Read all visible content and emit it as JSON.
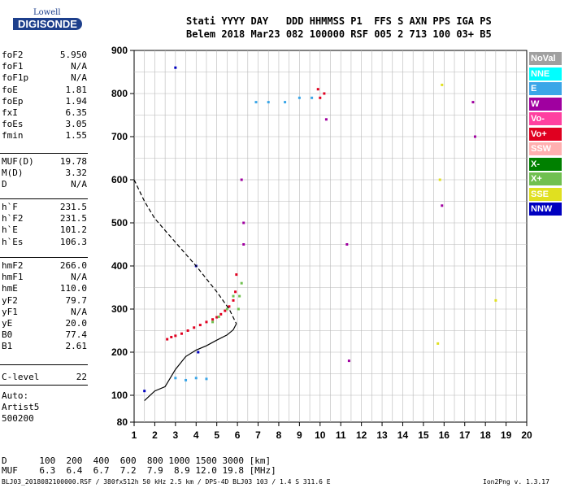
{
  "logo": {
    "line1": "Lowell",
    "line2": "DIGISONDE"
  },
  "header": {
    "line1": "Stati YYYY DAY   DDD HHMMSS P1  FFS S AXN PPS IGA PS",
    "line2": "Belem 2018 Mar23 082 100000 RSF 005 2 713 100 03+ B5"
  },
  "params_1": [
    {
      "label": "foF2",
      "value": "5.950"
    },
    {
      "label": "foF1",
      "value": "N/A"
    },
    {
      "label": "foF1p",
      "value": "N/A"
    },
    {
      "label": "foE",
      "value": "1.81"
    },
    {
      "label": "foEp",
      "value": "1.94"
    },
    {
      "label": "fxI",
      "value": "6.35"
    },
    {
      "label": "foEs",
      "value": "3.05"
    },
    {
      "label": "fmin",
      "value": "1.55"
    }
  ],
  "params_2": [
    {
      "label": "MUF(D)",
      "value": "19.78"
    },
    {
      "label": "M(D)",
      "value": "3.32"
    },
    {
      "label": "D",
      "value": "N/A"
    }
  ],
  "params_3": [
    {
      "label": "h`F",
      "value": "231.5"
    },
    {
      "label": "h`F2",
      "value": "231.5"
    },
    {
      "label": "h`E",
      "value": "101.2"
    },
    {
      "label": "h`Es",
      "value": "106.3"
    }
  ],
  "params_4": [
    {
      "label": "hmF2",
      "value": "266.0"
    },
    {
      "label": "hmF1",
      "value": "N/A"
    },
    {
      "label": "hmE",
      "value": "110.0"
    },
    {
      "label": "yF2",
      "value": "79.7"
    },
    {
      "label": "yF1",
      "value": "N/A"
    },
    {
      "label": "yE",
      "value": "20.0"
    },
    {
      "label": "B0",
      "value": "77.4"
    },
    {
      "label": "B1",
      "value": "2.61"
    }
  ],
  "params_5": [
    {
      "label": "C-level",
      "value": "22"
    }
  ],
  "auto_lines": [
    "Auto:",
    "Artist5",
    "500200"
  ],
  "mufd_table": {
    "d_label": "D",
    "d_values": "100  200  400  600  800 1000 1500 3000 [km]",
    "muf_label": "MUF",
    "muf_values": "6.3  6.4  6.7  7.2  7.9  8.9 12.0 19.8 [MHz]"
  },
  "footnote_left": "BLJ03_2018082100000.RSF / 380fx512h 50 kHz 2.5 km / DPS-4D BLJ03 103 / 1.4 S 311.6 E",
  "footnote_right": "Ion2Png v. 1.3.17",
  "legend": [
    {
      "label": "NoVal",
      "bg": "#a0a0a0",
      "fg": "#ffffff"
    },
    {
      "label": "NNE",
      "bg": "#00ffff",
      "fg": "#ffffff"
    },
    {
      "label": "E",
      "bg": "#3aa6e8",
      "fg": "#ffffff"
    },
    {
      "label": "W",
      "bg": "#a000a0",
      "fg": "#ffffff"
    },
    {
      "label": "Vo-",
      "bg": "#ff40a0",
      "fg": "#ffffff"
    },
    {
      "label": "Vo+",
      "bg": "#e00020",
      "fg": "#ffffff"
    },
    {
      "label": "SSW",
      "bg": "#ffb0b0",
      "fg": "#ffffff"
    },
    {
      "label": "X-",
      "bg": "#008000",
      "fg": "#ffffff"
    },
    {
      "label": "X+",
      "bg": "#70c050",
      "fg": "#ffffff"
    },
    {
      "label": "SSE",
      "bg": "#e0e020",
      "fg": "#ffffff"
    },
    {
      "label": "NNW",
      "bg": "#0000c0",
      "fg": "#ffffff"
    }
  ],
  "chart_data": {
    "type": "scatter",
    "xlabel": "",
    "ylabel": "",
    "xlim": [
      1,
      20
    ],
    "ylim": [
      80,
      900
    ],
    "x_ticks": [
      "1",
      "2",
      "3",
      "4",
      "5",
      "6",
      "7",
      "8",
      "9",
      "10",
      "11",
      "12",
      "13",
      "14",
      "15",
      "16",
      "17",
      "18",
      "19",
      "20"
    ],
    "y_ticks": [
      "80",
      "100",
      "200",
      "300",
      "400",
      "500",
      "600",
      "700",
      "800",
      "900"
    ],
    "grid": true,
    "series": [
      {
        "name": "Vo+",
        "color": "#e00020",
        "points": [
          [
            2.6,
            230
          ],
          [
            2.8,
            235
          ],
          [
            3.0,
            238
          ],
          [
            3.3,
            243
          ],
          [
            3.6,
            250
          ],
          [
            3.9,
            257
          ],
          [
            4.2,
            263
          ],
          [
            4.5,
            270
          ],
          [
            4.8,
            276
          ],
          [
            5.0,
            281
          ],
          [
            5.2,
            288
          ],
          [
            5.4,
            296
          ],
          [
            5.6,
            306
          ],
          [
            5.8,
            320
          ],
          [
            5.9,
            340
          ],
          [
            5.95,
            380
          ],
          [
            10.0,
            790
          ],
          [
            10.2,
            800
          ],
          [
            9.9,
            810
          ]
        ]
      },
      {
        "name": "X+",
        "color": "#70c050",
        "points": [
          [
            4.8,
            270
          ],
          [
            5.1,
            282
          ],
          [
            5.5,
            300
          ],
          [
            5.8,
            330
          ],
          [
            6.05,
            300
          ],
          [
            6.1,
            330
          ],
          [
            6.2,
            360
          ]
        ]
      },
      {
        "name": "E",
        "color": "#3aa6e8",
        "points": [
          [
            3.0,
            140
          ],
          [
            3.5,
            135
          ],
          [
            4.0,
            140
          ],
          [
            4.5,
            138
          ],
          [
            6.9,
            780
          ],
          [
            7.5,
            780
          ],
          [
            8.3,
            780
          ],
          [
            9.0,
            790
          ],
          [
            9.6,
            790
          ]
        ]
      },
      {
        "name": "W",
        "color": "#a000a0",
        "points": [
          [
            6.2,
            600
          ],
          [
            6.3,
            500
          ],
          [
            6.3,
            450
          ],
          [
            10.3,
            740
          ],
          [
            11.3,
            450
          ],
          [
            11.4,
            180
          ],
          [
            17.4,
            780
          ],
          [
            17.5,
            700
          ],
          [
            15.9,
            540
          ]
        ]
      },
      {
        "name": "NNW",
        "color": "#0000c0",
        "points": [
          [
            3.0,
            860
          ],
          [
            4.0,
            400
          ],
          [
            4.1,
            200
          ],
          [
            1.5,
            110
          ]
        ]
      },
      {
        "name": "SSE",
        "color": "#e0e020",
        "points": [
          [
            15.9,
            820
          ],
          [
            15.8,
            600
          ],
          [
            15.7,
            220
          ],
          [
            18.5,
            320
          ]
        ]
      }
    ],
    "profile_curve": [
      [
        1.5,
        96
      ],
      [
        2.0,
        110
      ],
      [
        2.5,
        120
      ],
      [
        3.0,
        160
      ],
      [
        3.5,
        190
      ],
      [
        4.0,
        205
      ],
      [
        4.5,
        215
      ],
      [
        5.0,
        228
      ],
      [
        5.5,
        240
      ],
      [
        5.8,
        252
      ],
      [
        5.95,
        266
      ]
    ],
    "extended_curve": [
      [
        1.0,
        600
      ],
      [
        1.5,
        550
      ],
      [
        2.0,
        510
      ],
      [
        3.0,
        455
      ],
      [
        4.0,
        400
      ],
      [
        5.0,
        340
      ],
      [
        5.6,
        300
      ],
      [
        5.95,
        266
      ]
    ]
  }
}
